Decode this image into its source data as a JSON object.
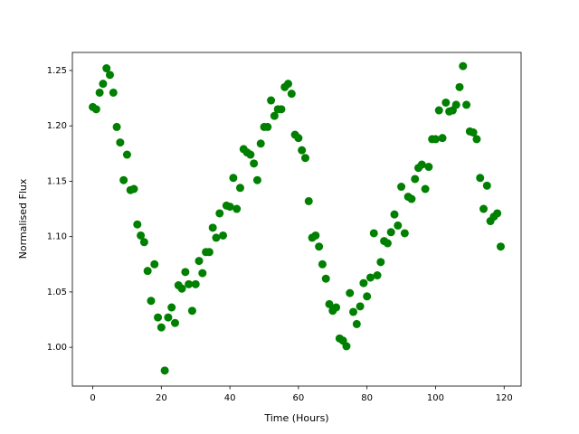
{
  "chart_data": {
    "type": "scatter",
    "xlabel": "Time (Hours)",
    "ylabel": "Normalised Flux",
    "color": "#008000",
    "x": [
      0,
      1,
      2,
      3,
      4,
      5,
      6,
      7,
      8,
      9,
      10,
      11,
      12,
      13,
      14,
      15,
      16,
      17,
      18,
      19,
      20,
      21,
      22,
      23,
      24,
      25,
      26,
      27,
      28,
      29,
      30,
      31,
      32,
      33,
      34,
      35,
      36,
      37,
      38,
      39,
      40,
      41,
      42,
      43,
      44,
      45,
      46,
      47,
      48,
      49,
      50,
      51,
      52,
      53,
      54,
      55,
      56,
      57,
      58,
      59,
      60,
      61,
      62,
      63,
      64,
      65,
      66,
      67,
      68,
      69,
      70,
      71,
      72,
      73,
      74,
      75,
      76,
      77,
      78,
      79,
      80,
      81,
      82,
      83,
      84,
      85,
      86,
      87,
      88,
      89,
      90,
      91,
      92,
      93,
      94,
      95,
      96,
      97,
      98,
      99,
      100,
      101,
      102,
      103,
      104,
      105,
      106,
      107,
      108,
      109,
      110,
      111,
      112,
      113,
      114,
      115,
      116,
      117,
      118,
      119
    ],
    "values": [
      1.217,
      1.215,
      1.23,
      1.238,
      1.252,
      1.246,
      1.23,
      1.199,
      1.185,
      1.151,
      1.174,
      1.142,
      1.143,
      1.111,
      1.101,
      1.095,
      1.069,
      1.042,
      1.075,
      1.027,
      1.018,
      0.979,
      1.027,
      1.036,
      1.022,
      1.056,
      1.053,
      1.068,
      1.057,
      1.033,
      1.057,
      1.078,
      1.067,
      1.086,
      1.086,
      1.108,
      1.099,
      1.121,
      1.101,
      1.128,
      1.127,
      1.153,
      1.125,
      1.144,
      1.179,
      1.176,
      1.174,
      1.166,
      1.151,
      1.184,
      1.199,
      1.199,
      1.223,
      1.209,
      1.215,
      1.215,
      1.235,
      1.238,
      1.229,
      1.192,
      1.189,
      1.178,
      1.171,
      1.132,
      1.099,
      1.101,
      1.091,
      1.075,
      1.062,
      1.039,
      1.033,
      1.036,
      1.008,
      1.006,
      1.001,
      1.049,
      1.032,
      1.021,
      1.037,
      1.058,
      1.046,
      1.063,
      1.103,
      1.065,
      1.077,
      1.096,
      1.094,
      1.104,
      1.12,
      1.11,
      1.145,
      1.103,
      1.136,
      1.134,
      1.152,
      1.162,
      1.165,
      1.143,
      1.163,
      1.188,
      1.188,
      1.214,
      1.189,
      1.221,
      1.213,
      1.214,
      1.219,
      1.235,
      1.254,
      1.219,
      1.195,
      1.194,
      1.188,
      1.153,
      1.125,
      1.146,
      1.114,
      1.118,
      1.121,
      1.091
    ],
    "xlim": [
      -5.95,
      124.95
    ],
    "xticks": [
      0,
      20,
      40,
      60,
      80,
      100,
      120
    ],
    "ylim": [
      0.965,
      1.2663
    ],
    "yticks": [
      {
        "value": 1.0,
        "label": "1.00"
      },
      1.05,
      {
        "value": 1.1,
        "label": "1.10"
      },
      1.15,
      {
        "value": 1.2,
        "label": "1.20"
      },
      1.25
    ]
  }
}
